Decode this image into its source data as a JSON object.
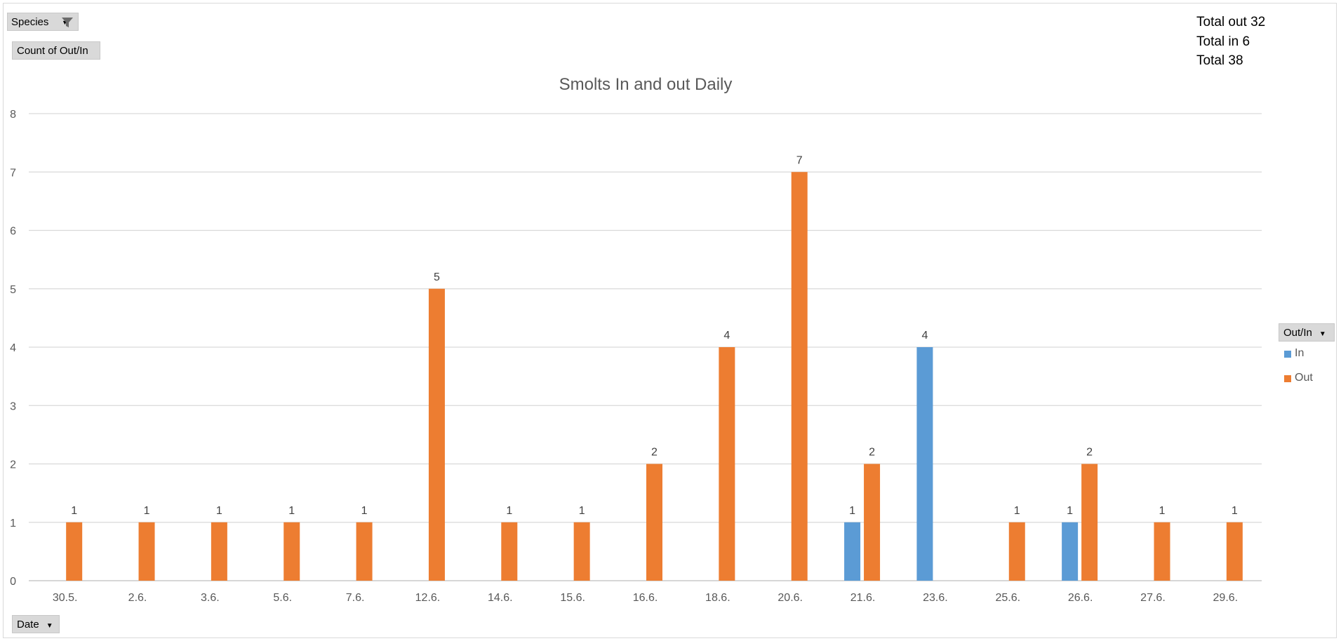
{
  "pivot": {
    "species_label": "Species",
    "count_label": "Count of Out/In",
    "date_label": "Date",
    "outin_label": "Out/In"
  },
  "totals": {
    "out": "Total out 32",
    "in": "Total in 6",
    "total": "Total 38"
  },
  "chart_data": {
    "type": "bar",
    "title": "Smolts In and out Daily",
    "xlabel": "",
    "ylabel": "",
    "ylim": [
      0,
      8
    ],
    "yticks": [
      0,
      1,
      2,
      3,
      4,
      5,
      6,
      7,
      8
    ],
    "grid": true,
    "legend_position": "right",
    "categories": [
      "30.5.",
      "2.6.",
      "3.6.",
      "5.6.",
      "7.6.",
      "12.6.",
      "14.6.",
      "15.6.",
      "16.6.",
      "18.6.",
      "20.6.",
      "21.6.",
      "23.6.",
      "25.6.",
      "26.6.",
      "27.6.",
      "29.6."
    ],
    "series": [
      {
        "name": "In",
        "color": "#5b9bd5",
        "values": [
          null,
          null,
          null,
          null,
          null,
          null,
          null,
          null,
          null,
          null,
          null,
          1,
          4,
          null,
          1,
          null,
          null
        ]
      },
      {
        "name": "Out",
        "color": "#ed7d31",
        "values": [
          1,
          1,
          1,
          1,
          1,
          5,
          1,
          1,
          2,
          4,
          7,
          2,
          null,
          1,
          2,
          1,
          1
        ]
      }
    ],
    "data_labels": true
  }
}
